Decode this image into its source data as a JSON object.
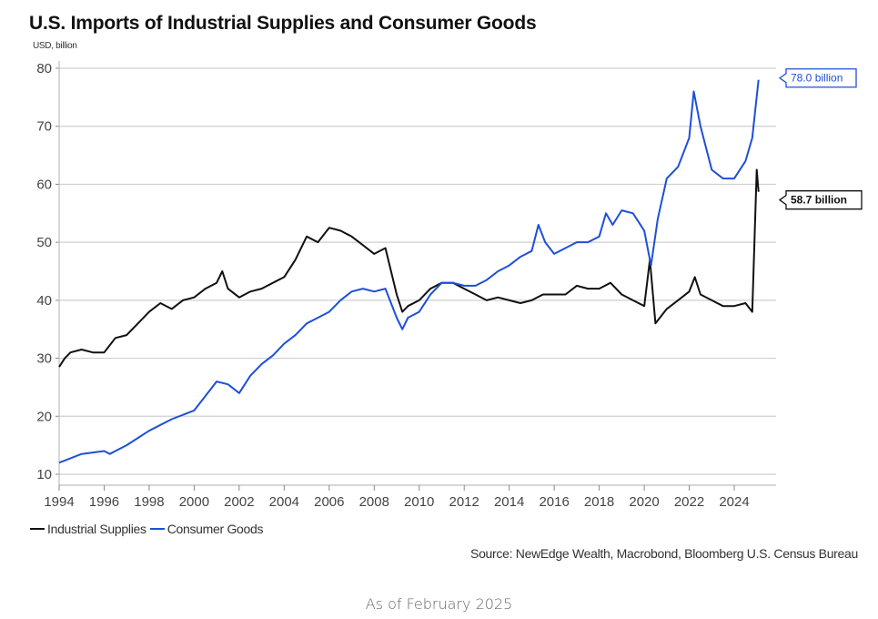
{
  "chart_data": {
    "type": "line",
    "title": "U.S. Imports of Industrial Supplies and Consumer Goods",
    "ylabel": "USD, billion",
    "xlabel": "",
    "ylim": [
      10,
      80
    ],
    "xlim": [
      1994,
      2025.5
    ],
    "yticks": [
      10,
      20,
      30,
      40,
      50,
      60,
      70,
      80
    ],
    "xticks": [
      1994,
      1996,
      1998,
      2000,
      2002,
      2004,
      2006,
      2008,
      2010,
      2012,
      2014,
      2016,
      2018,
      2020,
      2022,
      2024
    ],
    "grid": "horizontal",
    "legend_position": "bottom-left",
    "series": [
      {
        "name": "Industrial Supplies",
        "color": "#111111",
        "points": [
          [
            1994.0,
            28.5
          ],
          [
            1994.25,
            30
          ],
          [
            1994.5,
            31
          ],
          [
            1995.0,
            31.5
          ],
          [
            1995.5,
            31
          ],
          [
            1996.0,
            31
          ],
          [
            1996.5,
            33.5
          ],
          [
            1997.0,
            34
          ],
          [
            1997.5,
            36
          ],
          [
            1998.0,
            38
          ],
          [
            1998.5,
            39.5
          ],
          [
            1999.0,
            38.5
          ],
          [
            1999.5,
            40
          ],
          [
            2000.0,
            40.5
          ],
          [
            2000.5,
            42
          ],
          [
            2001.0,
            43
          ],
          [
            2001.25,
            45
          ],
          [
            2001.5,
            42
          ],
          [
            2002.0,
            40.5
          ],
          [
            2002.5,
            41.5
          ],
          [
            2003.0,
            42
          ],
          [
            2003.5,
            43
          ],
          [
            2004.0,
            44
          ],
          [
            2004.5,
            47
          ],
          [
            2005.0,
            51
          ],
          [
            2005.5,
            50
          ],
          [
            2006.0,
            52.5
          ],
          [
            2006.5,
            52
          ],
          [
            2007.0,
            51
          ],
          [
            2007.5,
            49.5
          ],
          [
            2008.0,
            48
          ],
          [
            2008.5,
            49
          ],
          [
            2009.0,
            41
          ],
          [
            2009.25,
            38
          ],
          [
            2009.5,
            39
          ],
          [
            2010.0,
            40
          ],
          [
            2010.5,
            42
          ],
          [
            2011.0,
            43
          ],
          [
            2011.5,
            43
          ],
          [
            2012.0,
            42
          ],
          [
            2012.5,
            41
          ],
          [
            2013.0,
            40
          ],
          [
            2013.5,
            40.5
          ],
          [
            2014.0,
            40
          ],
          [
            2014.5,
            39.5
          ],
          [
            2015.0,
            40
          ],
          [
            2015.5,
            41
          ],
          [
            2016.0,
            41
          ],
          [
            2016.5,
            41
          ],
          [
            2017.0,
            42.5
          ],
          [
            2017.5,
            42
          ],
          [
            2018.0,
            42
          ],
          [
            2018.5,
            43
          ],
          [
            2019.0,
            41
          ],
          [
            2019.5,
            40
          ],
          [
            2020.0,
            39
          ],
          [
            2020.25,
            47
          ],
          [
            2020.5,
            36
          ],
          [
            2021.0,
            38.5
          ],
          [
            2021.5,
            40
          ],
          [
            2022.0,
            41.5
          ],
          [
            2022.25,
            44
          ],
          [
            2022.5,
            41
          ],
          [
            2023.0,
            40
          ],
          [
            2023.5,
            39
          ],
          [
            2024.0,
            39
          ],
          [
            2024.5,
            39.5
          ],
          [
            2024.8,
            38
          ],
          [
            2025.0,
            62.5
          ],
          [
            2025.08,
            58.7
          ]
        ]
      },
      {
        "name": "Consumer Goods",
        "color": "#1f4fd8",
        "points": [
          [
            1994.0,
            12
          ],
          [
            1995.0,
            13.5
          ],
          [
            1996.0,
            14
          ],
          [
            1996.25,
            13.5
          ],
          [
            1997.0,
            15
          ],
          [
            1998.0,
            17.5
          ],
          [
            1999.0,
            19.5
          ],
          [
            2000.0,
            21
          ],
          [
            2000.5,
            23.5
          ],
          [
            2001.0,
            26
          ],
          [
            2001.5,
            25.5
          ],
          [
            2002.0,
            24
          ],
          [
            2002.5,
            27
          ],
          [
            2003.0,
            29
          ],
          [
            2003.5,
            30.5
          ],
          [
            2004.0,
            32.5
          ],
          [
            2004.5,
            34
          ],
          [
            2005.0,
            36
          ],
          [
            2005.5,
            37
          ],
          [
            2006.0,
            38
          ],
          [
            2006.5,
            40
          ],
          [
            2007.0,
            41.5
          ],
          [
            2007.5,
            42
          ],
          [
            2008.0,
            41.5
          ],
          [
            2008.5,
            42
          ],
          [
            2009.0,
            37
          ],
          [
            2009.25,
            35
          ],
          [
            2009.5,
            37
          ],
          [
            2010.0,
            38
          ],
          [
            2010.5,
            41
          ],
          [
            2011.0,
            43
          ],
          [
            2011.5,
            43
          ],
          [
            2012.0,
            42.5
          ],
          [
            2012.5,
            42.5
          ],
          [
            2013.0,
            43.5
          ],
          [
            2013.5,
            45
          ],
          [
            2014.0,
            46
          ],
          [
            2014.5,
            47.5
          ],
          [
            2015.0,
            48.5
          ],
          [
            2015.3,
            53
          ],
          [
            2015.6,
            50
          ],
          [
            2016.0,
            48
          ],
          [
            2016.5,
            49
          ],
          [
            2017.0,
            50
          ],
          [
            2017.5,
            50
          ],
          [
            2018.0,
            51
          ],
          [
            2018.3,
            55
          ],
          [
            2018.6,
            53
          ],
          [
            2019.0,
            55.5
          ],
          [
            2019.5,
            55
          ],
          [
            2020.0,
            52
          ],
          [
            2020.3,
            46
          ],
          [
            2020.6,
            54
          ],
          [
            2021.0,
            61
          ],
          [
            2021.5,
            63
          ],
          [
            2022.0,
            68
          ],
          [
            2022.2,
            76
          ],
          [
            2022.5,
            70
          ],
          [
            2023.0,
            62.5
          ],
          [
            2023.5,
            61
          ],
          [
            2024.0,
            61
          ],
          [
            2024.5,
            64
          ],
          [
            2024.8,
            68
          ],
          [
            2025.08,
            78
          ]
        ]
      }
    ],
    "annotations": [
      {
        "series": "Consumer Goods",
        "value": 78.0,
        "text": "78.0 billion",
        "color": "#1f4fd8"
      },
      {
        "series": "Industrial Supplies",
        "value": 58.7,
        "text": "58.7 billion",
        "color": "#111111"
      }
    ]
  },
  "source": "Source: NewEdge Wealth, Macrobond, Bloomberg U.S. Census Bureau",
  "as_of": "As of February 2025"
}
